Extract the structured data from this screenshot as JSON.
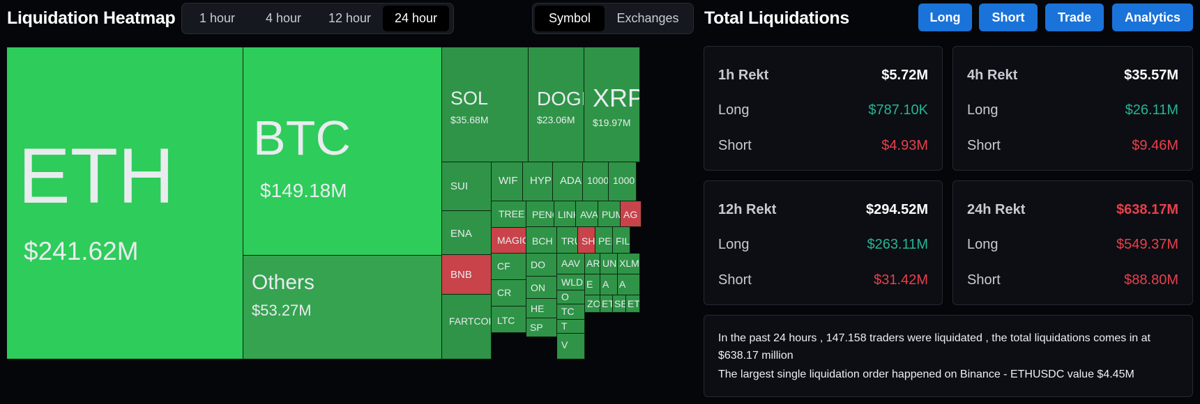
{
  "header": {
    "heatmap_title": "Liquidation Heatmap",
    "time_tabs": [
      {
        "label": "1 hour",
        "active": false
      },
      {
        "label": "4 hour",
        "active": false
      },
      {
        "label": "12 hour",
        "active": false
      },
      {
        "label": "24 hour",
        "active": true
      }
    ],
    "view_tabs": [
      {
        "label": "Symbol",
        "active": true
      },
      {
        "label": "Exchanges",
        "active": false
      }
    ],
    "total_title": "Total Liquidations",
    "buttons": {
      "long": "Long",
      "short": "Short",
      "trade": "Trade",
      "analytics": "Analytics"
    }
  },
  "colors": {
    "tile_bright": "#2ecc5a",
    "tile_mid": "#35a350",
    "tile_dark": "#2f9447",
    "tile_red": "#c8434a",
    "positive": "#26b594",
    "negative": "#e8404b",
    "accent": "#1a73d9"
  },
  "heatmap": {
    "tiles": [
      {
        "symbol": "ETH",
        "value": "$241.62M",
        "color": "bright"
      },
      {
        "symbol": "BTC",
        "value": "$149.18M",
        "color": "bright"
      },
      {
        "symbol": "Others",
        "value": "$53.27M",
        "color": "mid"
      },
      {
        "symbol": "SOL",
        "value": "$35.68M",
        "color": "dark"
      },
      {
        "symbol": "DOGE",
        "value": "$23.06M",
        "color": "dark"
      },
      {
        "symbol": "XRP",
        "value": "$19.97M",
        "color": "dark"
      },
      {
        "symbol": "SUI",
        "value": "",
        "color": "dark"
      },
      {
        "symbol": "ENA",
        "value": "",
        "color": "dark"
      },
      {
        "symbol": "BNB",
        "value": "",
        "color": "red"
      },
      {
        "symbol": "FARTCOIN",
        "value": "",
        "color": "dark"
      },
      {
        "symbol": "WIF",
        "value": "",
        "color": "dark"
      },
      {
        "symbol": "HYPE",
        "value": "",
        "color": "dark"
      },
      {
        "symbol": "ADA",
        "value": "",
        "color": "dark"
      },
      {
        "symbol": "1000",
        "value": "",
        "color": "dark"
      },
      {
        "symbol": "1000",
        "value": "",
        "color": "dark"
      },
      {
        "symbol": "TREE",
        "value": "",
        "color": "dark"
      },
      {
        "symbol": "MAGIC",
        "value": "",
        "color": "red"
      },
      {
        "symbol": "PENG",
        "value": "",
        "color": "dark"
      },
      {
        "symbol": "LINK",
        "value": "",
        "color": "dark"
      },
      {
        "symbol": "AVAX",
        "value": "",
        "color": "dark"
      },
      {
        "symbol": "PUM",
        "value": "",
        "color": "dark"
      },
      {
        "symbol": "AG",
        "value": "",
        "color": "red"
      },
      {
        "symbol": "CF",
        "value": "",
        "color": "dark"
      },
      {
        "symbol": "CR",
        "value": "",
        "color": "dark"
      },
      {
        "symbol": "LTC",
        "value": "",
        "color": "dark"
      },
      {
        "symbol": "BCH",
        "value": "",
        "color": "dark"
      },
      {
        "symbol": "TRUM",
        "value": "",
        "color": "dark"
      },
      {
        "symbol": "SHM",
        "value": "",
        "color": "red"
      },
      {
        "symbol": "PEPE",
        "value": "",
        "color": "dark"
      },
      {
        "symbol": "FIL",
        "value": "",
        "color": "dark"
      },
      {
        "symbol": "DO",
        "value": "",
        "color": "dark"
      },
      {
        "symbol": "ON",
        "value": "",
        "color": "dark"
      },
      {
        "symbol": "HE",
        "value": "",
        "color": "dark"
      },
      {
        "symbol": "SP",
        "value": "",
        "color": "dark"
      },
      {
        "symbol": "AAV",
        "value": "",
        "color": "dark"
      },
      {
        "symbol": "ARB",
        "value": "",
        "color": "dark"
      },
      {
        "symbol": "UNI",
        "value": "",
        "color": "dark"
      },
      {
        "symbol": "XLM",
        "value": "",
        "color": "dark"
      },
      {
        "symbol": "WLD",
        "value": "",
        "color": "dark"
      },
      {
        "symbol": "O",
        "value": "",
        "color": "dark"
      },
      {
        "symbol": "TC",
        "value": "",
        "color": "dark"
      },
      {
        "symbol": "T",
        "value": "",
        "color": "dark"
      },
      {
        "symbol": "V",
        "value": "",
        "color": "dark"
      },
      {
        "symbol": "E",
        "value": "",
        "color": "dark"
      },
      {
        "symbol": "A",
        "value": "",
        "color": "dark"
      },
      {
        "symbol": "A",
        "value": "",
        "color": "dark"
      },
      {
        "symbol": "ZO",
        "value": "",
        "color": "dark"
      },
      {
        "symbol": "ET",
        "value": "",
        "color": "dark"
      },
      {
        "symbol": "SE",
        "value": "",
        "color": "dark"
      },
      {
        "symbol": "ET",
        "value": "",
        "color": "dark"
      }
    ]
  },
  "rekt": [
    {
      "period": "1h Rekt",
      "total": "$5.72M",
      "total_color": "white",
      "long_label": "Long",
      "long": "$787.10K",
      "short_label": "Short",
      "short": "$4.93M",
      "long_color": "green"
    },
    {
      "period": "4h Rekt",
      "total": "$35.57M",
      "total_color": "white",
      "long_label": "Long",
      "long": "$26.11M",
      "short_label": "Short",
      "short": "$9.46M",
      "long_color": "green"
    },
    {
      "period": "12h Rekt",
      "total": "$294.52M",
      "total_color": "white",
      "long_label": "Long",
      "long": "$263.11M",
      "short_label": "Short",
      "short": "$31.42M",
      "long_color": "green"
    },
    {
      "period": "24h Rekt",
      "total": "$638.17M",
      "total_color": "red",
      "long_label": "Long",
      "long": "$549.37M",
      "short_label": "Short",
      "short": "$88.80M",
      "long_color": "red"
    }
  ],
  "summary": {
    "line1": "In the past 24 hours , 147.158 traders were liquidated , the total liquidations comes in at $638.17 million",
    "line2": "The largest single liquidation order happened on Binance - ETHUSDC value $4.45M"
  }
}
